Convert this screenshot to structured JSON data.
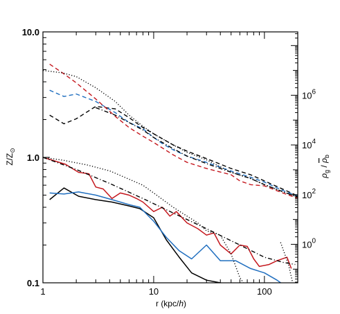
{
  "chart_data": {
    "type": "line",
    "xlabel_parts": [
      "r (kpc/",
      "h",
      ")"
    ],
    "ylabel_left_parts": [
      "Z/Z",
      "⊙"
    ],
    "ylabel_right_parts": [
      "ρ",
      "g",
      " / ",
      "ρ",
      "b"
    ],
    "x_scale": "log",
    "xlim": [
      1,
      200
    ],
    "y_left_scale": "log",
    "ylim_left": [
      0.1,
      10
    ],
    "y_right_scale": "log",
    "ylim_right_log10": [
      -1.55,
      8.55
    ],
    "grid": false,
    "x_ticks": [
      1,
      10,
      100
    ],
    "x_tick_labels": [
      "1",
      "10",
      "100"
    ],
    "y_left_ticks": [
      0.1,
      1,
      10
    ],
    "y_left_tick_labels": [
      "0.1",
      "1.0",
      "10.0"
    ],
    "y_right_ticks_exp": [
      0,
      2,
      4,
      6
    ],
    "y_right_tick_base": "10",
    "y_right_tick_exponents": [
      "0",
      "2",
      "4",
      "6"
    ],
    "colors": {
      "black": "#000000",
      "blue": "#1f6ebf",
      "red": "#c4161c"
    },
    "metallicity_series": [
      {
        "color": "black",
        "style": "solid",
        "x": [
          1.15,
          1.55,
          2.1,
          3.0,
          4.2,
          6.0,
          7.5,
          10,
          13,
          17,
          22,
          30,
          40,
          50
        ],
        "y": [
          0.46,
          0.57,
          0.49,
          0.46,
          0.44,
          0.41,
          0.39,
          0.33,
          0.22,
          0.16,
          0.12,
          0.105,
          0.1,
          0.096
        ]
      },
      {
        "color": "blue",
        "style": "solid",
        "x": [
          1.15,
          1.55,
          2.1,
          3.0,
          4.2,
          6.0,
          7.5,
          10,
          13,
          17,
          22,
          30,
          40,
          55,
          75,
          100,
          130,
          160
        ],
        "y": [
          0.52,
          0.51,
          0.53,
          0.5,
          0.46,
          0.42,
          0.4,
          0.31,
          0.23,
          0.18,
          0.155,
          0.2,
          0.15,
          0.15,
          0.13,
          0.12,
          0.105,
          0.092
        ]
      },
      {
        "color": "red",
        "style": "solid",
        "x": [
          1.0,
          1.6,
          2.1,
          2.6,
          3.0,
          3.5,
          4.2,
          5.0,
          6.0,
          7.0,
          8.0,
          10,
          12,
          14,
          16,
          20,
          25,
          30,
          35,
          40,
          50,
          60,
          70,
          80,
          90,
          110,
          130,
          160,
          175
        ],
        "y": [
          1.0,
          0.88,
          0.76,
          0.74,
          0.58,
          0.56,
          0.47,
          0.52,
          0.5,
          0.47,
          0.44,
          0.37,
          0.4,
          0.34,
          0.37,
          0.3,
          0.27,
          0.24,
          0.25,
          0.2,
          0.17,
          0.2,
          0.195,
          0.155,
          0.135,
          0.14,
          0.15,
          0.16,
          0.13
        ]
      },
      {
        "color": "black",
        "style": "dotted",
        "x": [
          1.0,
          1.5,
          2.5,
          4.0,
          6.0,
          8.0,
          10,
          15,
          20,
          25,
          30,
          40,
          50,
          60,
          70,
          80
        ],
        "y": [
          1.0,
          0.95,
          0.87,
          0.78,
          0.67,
          0.6,
          0.52,
          0.4,
          0.34,
          0.3,
          0.26,
          0.24,
          0.17,
          0.11,
          0.09,
          0.08
        ]
      },
      {
        "color": "black",
        "style": "dotted",
        "x": [
          140,
          165,
          180
        ],
        "y": [
          0.21,
          0.14,
          0.1
        ]
      },
      {
        "color": "black",
        "style": "dashdot",
        "x": [
          1.0,
          2.0,
          4.0,
          8.0,
          15,
          30,
          60,
          100,
          150,
          190
        ],
        "y": [
          1.0,
          0.8,
          0.62,
          0.47,
          0.36,
          0.27,
          0.2,
          0.16,
          0.145,
          0.14
        ]
      }
    ],
    "density_series_log10": [
      {
        "color": "black",
        "style": "dashed",
        "x": [
          1.15,
          1.55,
          2.0,
          3.0,
          4.5,
          6.0,
          8.0,
          10,
          15,
          20,
          30,
          50,
          75,
          100,
          150,
          200
        ],
        "y": [
          5.2,
          4.85,
          5.05,
          5.55,
          5.45,
          5.1,
          4.7,
          4.45,
          4.0,
          3.75,
          3.45,
          3.05,
          2.8,
          2.55,
          2.2,
          1.95
        ]
      },
      {
        "color": "blue",
        "style": "dashed",
        "x": [
          1.15,
          1.55,
          2.0,
          3.0,
          4.5,
          6.0,
          8.0,
          10,
          12,
          15,
          20,
          30,
          50,
          75,
          100,
          150,
          200
        ],
        "y": [
          6.2,
          5.95,
          6.05,
          5.75,
          5.3,
          4.9,
          4.65,
          4.3,
          4.05,
          3.8,
          3.55,
          3.3,
          2.95,
          2.7,
          2.5,
          2.15,
          1.95
        ]
      },
      {
        "color": "red",
        "style": "dashed",
        "x": [
          1.15,
          1.5,
          2.0,
          3.0,
          4.5,
          6.0,
          8.0,
          10,
          15,
          20,
          30,
          50,
          60,
          75,
          100,
          150,
          200
        ],
        "y": [
          7.25,
          6.9,
          6.5,
          5.85,
          5.15,
          4.7,
          4.35,
          4.1,
          3.6,
          3.3,
          3.05,
          2.8,
          2.55,
          2.4,
          2.35,
          2.05,
          1.85
        ]
      },
      {
        "color": "black",
        "style": "dotted",
        "x": [
          1.0,
          1.5,
          2.0,
          3.0,
          4.5,
          6.0,
          8.0,
          10,
          15,
          20,
          30,
          50,
          75,
          100,
          150,
          200
        ],
        "y": [
          7.0,
          6.9,
          6.75,
          6.3,
          5.75,
          5.2,
          4.75,
          4.45,
          4.0,
          3.7,
          3.4,
          2.9,
          2.65,
          2.4,
          2.1,
          1.9
        ]
      },
      {
        "color": "black",
        "style": "dashdot",
        "x": [
          3.0,
          4.5,
          6.0,
          8.0,
          10,
          15,
          20,
          30,
          50,
          75,
          100,
          150,
          200
        ],
        "y": [
          5.5,
          5.2,
          4.9,
          4.6,
          4.3,
          3.85,
          3.55,
          3.25,
          2.9,
          2.65,
          2.4,
          2.1,
          1.9
        ]
      }
    ]
  }
}
